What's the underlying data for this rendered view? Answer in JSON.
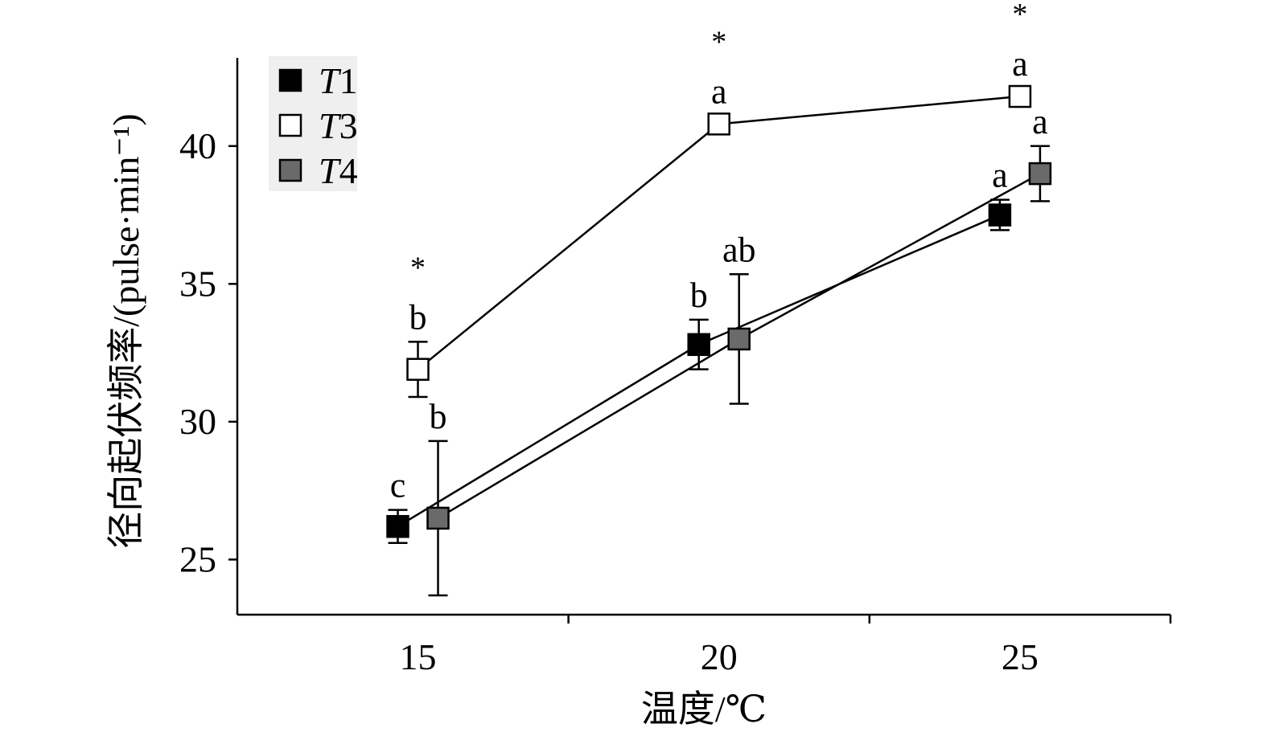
{
  "chart_data": {
    "type": "line",
    "title": "",
    "xlabel": "温度/℃",
    "ylabel": "径向起伏频率/(pulse·min⁻¹)",
    "x_ticks": [
      15,
      20,
      25
    ],
    "y_ticks": [
      25,
      30,
      35,
      40
    ],
    "xlim": [
      12,
      27.5
    ],
    "ylim": [
      23,
      43.2
    ],
    "grid": false,
    "legend_position": "top-left",
    "series": [
      {
        "name": "T1",
        "color": "#000000",
        "x": [
          15,
          20,
          25
        ],
        "y": [
          26.2,
          32.8,
          37.5
        ],
        "error": [
          0.6,
          0.9,
          0.55
        ],
        "labels": [
          "c",
          "b",
          "a"
        ]
      },
      {
        "name": "T3",
        "color": "#ffffff",
        "x": [
          15,
          20,
          25
        ],
        "y": [
          31.9,
          40.8,
          41.8
        ],
        "error": [
          1.0,
          0.0,
          0.0
        ],
        "labels": [
          "b",
          "a",
          "a"
        ]
      },
      {
        "name": "T4",
        "color": "#6a6a6a",
        "x": [
          15,
          20,
          25
        ],
        "y": [
          26.5,
          33.0,
          39.0
        ],
        "error": [
          2.8,
          2.35,
          1.0
        ],
        "labels": [
          "b",
          "ab",
          "a"
        ]
      }
    ],
    "annotations": [
      {
        "x": 15,
        "text": "*"
      },
      {
        "x": 20,
        "text": "*"
      },
      {
        "x": 25,
        "text": "*"
      }
    ]
  }
}
